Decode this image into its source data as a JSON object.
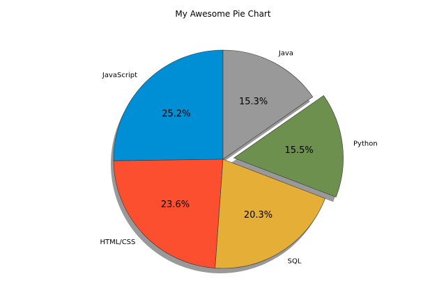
{
  "chart_data": {
    "type": "pie",
    "title": "My Awesome Pie Chart",
    "start_angle_deg": 90,
    "direction": "counterclockwise",
    "shadow": true,
    "slices": [
      {
        "label": "JavaScript",
        "value": 25.2,
        "pct_label": "25.2%",
        "color": "#008fd5",
        "explode": 0
      },
      {
        "label": "HTML/CSS",
        "value": 23.6,
        "pct_label": "23.6%",
        "color": "#fc4f30",
        "explode": 0
      },
      {
        "label": "SQL",
        "value": 20.3,
        "pct_label": "20.3%",
        "color": "#e5ae37",
        "explode": 0
      },
      {
        "label": "Python",
        "value": 15.5,
        "pct_label": "15.5%",
        "color": "#6d904f",
        "explode": 0.1
      },
      {
        "label": "Java",
        "value": 15.3,
        "pct_label": "15.3%",
        "color": "#999999",
        "explode": 0
      }
    ]
  }
}
